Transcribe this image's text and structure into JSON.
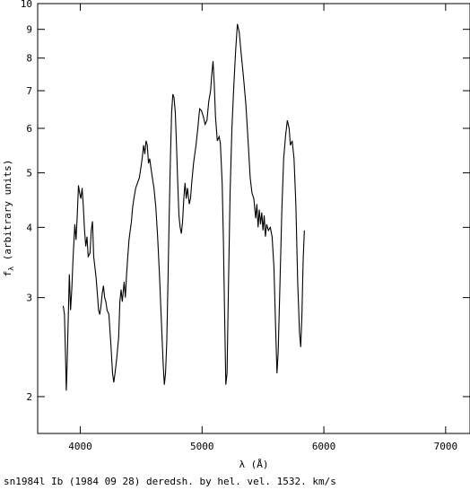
{
  "chart_data": {
    "type": "line",
    "title": "",
    "xlabel": "λ (Å)",
    "ylabel": "f_λ (arbitrary units)",
    "ylabel_main": "f",
    "ylabel_sub": "λ",
    "ylabel_rest": " (arbitrary units)",
    "caption": "sn1984l Ib (1984 09 28) deredsh. by hel. vel.  1532. km/s",
    "xlim": [
      3650,
      7200
    ],
    "ylim": [
      1.72,
      10
    ],
    "yscale": "log",
    "xticks": [
      4000,
      5000,
      6000,
      7000
    ],
    "yticks": [
      2,
      3,
      4,
      5,
      6,
      7,
      8,
      9,
      10
    ],
    "series": [
      {
        "points": [
          [
            3860,
            2.9
          ],
          [
            3870,
            2.8
          ],
          [
            3880,
            2.3
          ],
          [
            3885,
            2.05
          ],
          [
            3890,
            2.2
          ],
          [
            3900,
            2.7
          ],
          [
            3910,
            3.3
          ],
          [
            3920,
            2.85
          ],
          [
            3930,
            3.1
          ],
          [
            3940,
            3.5
          ],
          [
            3955,
            4.05
          ],
          [
            3965,
            3.8
          ],
          [
            3975,
            4.2
          ],
          [
            3985,
            4.75
          ],
          [
            3995,
            4.6
          ],
          [
            4005,
            4.5
          ],
          [
            4015,
            4.7
          ],
          [
            4025,
            4.35
          ],
          [
            4035,
            3.95
          ],
          [
            4045,
            3.7
          ],
          [
            4055,
            3.85
          ],
          [
            4065,
            3.55
          ],
          [
            4080,
            3.6
          ],
          [
            4090,
            3.95
          ],
          [
            4100,
            4.1
          ],
          [
            4110,
            3.55
          ],
          [
            4120,
            3.4
          ],
          [
            4130,
            3.25
          ],
          [
            4140,
            3.05
          ],
          [
            4150,
            2.85
          ],
          [
            4160,
            2.8
          ],
          [
            4170,
            2.9
          ],
          [
            4180,
            3.05
          ],
          [
            4190,
            3.15
          ],
          [
            4200,
            3.0
          ],
          [
            4210,
            2.95
          ],
          [
            4220,
            2.85
          ],
          [
            4235,
            2.8
          ],
          [
            4250,
            2.5
          ],
          [
            4265,
            2.2
          ],
          [
            4275,
            2.12
          ],
          [
            4285,
            2.2
          ],
          [
            4300,
            2.35
          ],
          [
            4315,
            2.55
          ],
          [
            4325,
            2.95
          ],
          [
            4335,
            3.1
          ],
          [
            4345,
            2.95
          ],
          [
            4360,
            3.2
          ],
          [
            4370,
            3.0
          ],
          [
            4380,
            3.3
          ],
          [
            4390,
            3.55
          ],
          [
            4400,
            3.8
          ],
          [
            4410,
            3.95
          ],
          [
            4420,
            4.1
          ],
          [
            4430,
            4.35
          ],
          [
            4440,
            4.5
          ],
          [
            4455,
            4.7
          ],
          [
            4470,
            4.8
          ],
          [
            4485,
            4.9
          ],
          [
            4500,
            5.15
          ],
          [
            4510,
            5.35
          ],
          [
            4520,
            5.6
          ],
          [
            4530,
            5.4
          ],
          [
            4540,
            5.7
          ],
          [
            4550,
            5.6
          ],
          [
            4560,
            5.2
          ],
          [
            4570,
            5.3
          ],
          [
            4580,
            5.1
          ],
          [
            4595,
            4.85
          ],
          [
            4605,
            4.7
          ],
          [
            4620,
            4.35
          ],
          [
            4635,
            3.85
          ],
          [
            4650,
            3.3
          ],
          [
            4665,
            2.75
          ],
          [
            4680,
            2.3
          ],
          [
            4690,
            2.1
          ],
          [
            4700,
            2.2
          ],
          [
            4710,
            2.5
          ],
          [
            4720,
            3.2
          ],
          [
            4730,
            4.2
          ],
          [
            4740,
            5.3
          ],
          [
            4750,
            6.4
          ],
          [
            4760,
            6.9
          ],
          [
            4770,
            6.8
          ],
          [
            4780,
            6.4
          ],
          [
            4790,
            5.6
          ],
          [
            4800,
            4.8
          ],
          [
            4810,
            4.2
          ],
          [
            4820,
            4.0
          ],
          [
            4830,
            3.9
          ],
          [
            4840,
            4.1
          ],
          [
            4850,
            4.5
          ],
          [
            4860,
            4.8
          ],
          [
            4870,
            4.5
          ],
          [
            4880,
            4.7
          ],
          [
            4895,
            4.4
          ],
          [
            4905,
            4.5
          ],
          [
            4915,
            4.8
          ],
          [
            4930,
            5.2
          ],
          [
            4950,
            5.6
          ],
          [
            4965,
            6.0
          ],
          [
            4980,
            6.5
          ],
          [
            4995,
            6.45
          ],
          [
            5010,
            6.3
          ],
          [
            5025,
            6.1
          ],
          [
            5040,
            6.2
          ],
          [
            5055,
            6.7
          ],
          [
            5070,
            7.0
          ],
          [
            5080,
            7.5
          ],
          [
            5090,
            7.9
          ],
          [
            5100,
            7.2
          ],
          [
            5110,
            6.3
          ],
          [
            5125,
            5.7
          ],
          [
            5140,
            5.8
          ],
          [
            5150,
            5.65
          ],
          [
            5165,
            4.8
          ],
          [
            5175,
            3.8
          ],
          [
            5185,
            2.8
          ],
          [
            5195,
            2.1
          ],
          [
            5205,
            2.2
          ],
          [
            5215,
            3.0
          ],
          [
            5230,
            4.6
          ],
          [
            5245,
            6.0
          ],
          [
            5260,
            7.1
          ],
          [
            5275,
            8.2
          ],
          [
            5290,
            9.2
          ],
          [
            5305,
            8.9
          ],
          [
            5320,
            8.2
          ],
          [
            5340,
            7.4
          ],
          [
            5360,
            6.6
          ],
          [
            5380,
            5.6
          ],
          [
            5395,
            4.9
          ],
          [
            5410,
            4.6
          ],
          [
            5425,
            4.5
          ],
          [
            5440,
            4.15
          ],
          [
            5450,
            4.4
          ],
          [
            5460,
            4.0
          ],
          [
            5470,
            4.3
          ],
          [
            5480,
            4.05
          ],
          [
            5490,
            4.25
          ],
          [
            5500,
            3.95
          ],
          [
            5510,
            4.2
          ],
          [
            5520,
            3.85
          ],
          [
            5530,
            4.05
          ],
          [
            5545,
            3.95
          ],
          [
            5560,
            4.0
          ],
          [
            5575,
            3.85
          ],
          [
            5590,
            3.4
          ],
          [
            5605,
            2.6
          ],
          [
            5615,
            2.2
          ],
          [
            5625,
            2.4
          ],
          [
            5640,
            3.2
          ],
          [
            5655,
            4.3
          ],
          [
            5670,
            5.3
          ],
          [
            5685,
            5.8
          ],
          [
            5700,
            6.2
          ],
          [
            5715,
            6.0
          ],
          [
            5725,
            5.6
          ],
          [
            5740,
            5.7
          ],
          [
            5755,
            5.3
          ],
          [
            5770,
            4.4
          ],
          [
            5785,
            3.2
          ],
          [
            5800,
            2.6
          ],
          [
            5810,
            2.45
          ],
          [
            5820,
            2.8
          ],
          [
            5830,
            3.5
          ],
          [
            5840,
            3.95
          ]
        ]
      }
    ]
  }
}
